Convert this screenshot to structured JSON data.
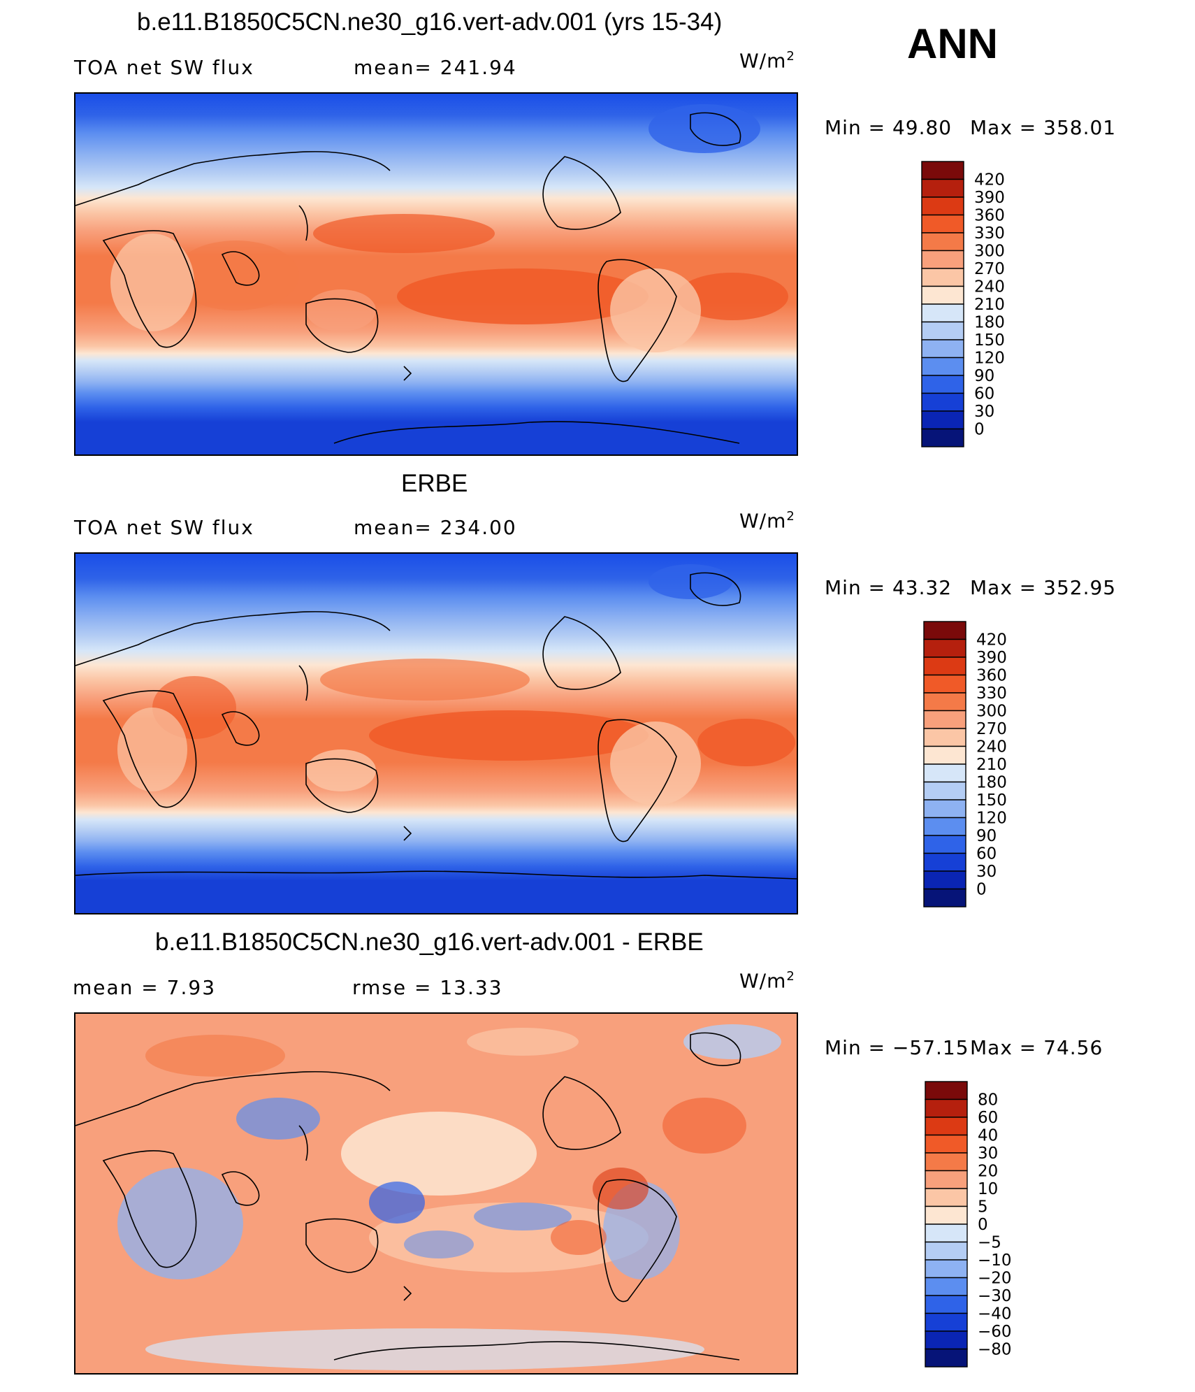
{
  "season": "ANN",
  "units": {
    "base": "W/m",
    "exp": "2"
  },
  "chart_data": [
    {
      "type": "heatmap",
      "title": "b.e11.B1850C5CN.ne30_g16.vert-adv.001 (yrs 15-34)",
      "left_label": "TOA net SW flux",
      "stat_label": "mean= 241.94",
      "min_text": "Min =   49.80",
      "max_text": "Max = 358.01",
      "colorbar_levels": [
        "420",
        "390",
        "360",
        "330",
        "300",
        "270",
        "240",
        "210",
        "180",
        "150",
        "120",
        "90",
        "60",
        "30",
        "0"
      ],
      "colors": [
        "#7a0a0a",
        "#b5200e",
        "#dc3a14",
        "#f05a28",
        "#f47a48",
        "#f8a07c",
        "#fbc6a6",
        "#fde6d2",
        "#d6e6f8",
        "#b4cdf4",
        "#8eb2f2",
        "#5c8ef0",
        "#2f63e8",
        "#1640d6",
        "#0a25b4",
        "#061478"
      ]
    },
    {
      "type": "heatmap",
      "title": "ERBE",
      "left_label": "TOA net SW flux",
      "stat_label": "mean= 234.00",
      "min_text": "Min =   43.32",
      "max_text": "Max = 352.95",
      "colorbar_levels": [
        "420",
        "390",
        "360",
        "330",
        "300",
        "270",
        "240",
        "210",
        "180",
        "150",
        "120",
        "90",
        "60",
        "30",
        "0"
      ],
      "colors": [
        "#7a0a0a",
        "#b5200e",
        "#dc3a14",
        "#f05a28",
        "#f47a48",
        "#f8a07c",
        "#fbc6a6",
        "#fde6d2",
        "#d6e6f8",
        "#b4cdf4",
        "#8eb2f2",
        "#5c8ef0",
        "#2f63e8",
        "#1640d6",
        "#0a25b4",
        "#061478"
      ]
    },
    {
      "type": "heatmap",
      "title": "b.e11.B1850C5CN.ne30_g16.vert-adv.001 - ERBE",
      "left_label": "mean =    7.93",
      "stat_label": "rmse =   13.33",
      "min_text": "Min = −57.15",
      "max_text": "Max =   74.56",
      "colorbar_levels": [
        "80",
        "60",
        "40",
        "30",
        "20",
        "10",
        "5",
        "0",
        "−5",
        "−10",
        "−20",
        "−30",
        "−40",
        "−60",
        "−80"
      ],
      "colors": [
        "#7a0a0a",
        "#b5200e",
        "#dc3a14",
        "#f05a28",
        "#f47a48",
        "#f8a07c",
        "#fbc6a6",
        "#fde6d2",
        "#d6e6f8",
        "#b4cdf4",
        "#8eb2f2",
        "#5c8ef0",
        "#2f63e8",
        "#1640d6",
        "#0a25b4",
        "#061478"
      ]
    }
  ]
}
